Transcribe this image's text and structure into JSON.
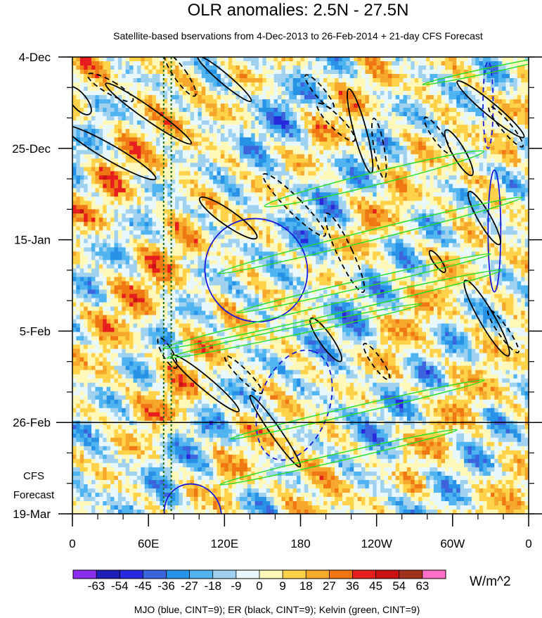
{
  "chart_data": {
    "type": "heatmap",
    "title": "OLR anomalies: 2.5N - 27.5N",
    "subtitle": "Satellite-based bservations from 4-Dec-2013 to 26-Feb-2014 + 21-day CFS Forecast",
    "xlabel": "",
    "ylabel": "",
    "x_ticks": [
      {
        "lon": 0,
        "label": "0"
      },
      {
        "lon": 60,
        "label": "60E"
      },
      {
        "lon": 120,
        "label": "120E"
      },
      {
        "lon": 180,
        "label": "180"
      },
      {
        "lon": 240,
        "label": "120W"
      },
      {
        "lon": 300,
        "label": "60W"
      },
      {
        "lon": 360,
        "label": "0"
      }
    ],
    "x_minor_step": 20,
    "xlim": [
      0,
      360
    ],
    "y_ticks": [
      {
        "day": 0,
        "label": "4-Dec"
      },
      {
        "day": 21,
        "label": "25-Dec"
      },
      {
        "day": 42,
        "label": "15-Jan"
      },
      {
        "day": 63,
        "label": "5-Feb"
      },
      {
        "day": 84,
        "label": "26-Feb"
      },
      {
        "day": 105,
        "label": "19-Mar"
      }
    ],
    "y_minor_step": 7,
    "ylim_days": [
      0,
      105
    ],
    "forecast_start_day": 84,
    "forecast_label_line1": "CFS",
    "forecast_label_line2": "Forecast",
    "colorbar": {
      "labels": [
        "-63",
        "-54",
        "-45",
        "-36",
        "-27",
        "-18",
        "-9",
        "0",
        "9",
        "18",
        "27",
        "36",
        "45",
        "54",
        "63"
      ],
      "colors": [
        "#8c2ef0",
        "#1e1eb4",
        "#2828dc",
        "#3c64dc",
        "#2892e6",
        "#50b4f0",
        "#a0d2f0",
        "#e8f8fc",
        "#fff8b8",
        "#ffd24a",
        "#f6a82c",
        "#f07814",
        "#e61e1e",
        "#c81414",
        "#a0321e",
        "#ff6ec8"
      ],
      "units": "W/m^2"
    },
    "reference_lines_lon": [
      72,
      78
    ],
    "contour_note": "MJO (blue, CINT=9); ER (black, CINT=9); Kelvin (green, CINT=9)",
    "series": [
      {
        "name": "MJO",
        "color": "#1a1ad8",
        "contours": [
          {
            "lon": 145,
            "day": 49,
            "rlon": 40,
            "rday": 12,
            "angle": 40,
            "dash": false
          },
          {
            "lon": 175,
            "day": 80,
            "rlon": 45,
            "rday": 8,
            "angle": 70,
            "dash": true
          },
          {
            "lon": 333,
            "day": 40,
            "rlon": 5,
            "rday": 14,
            "angle": 0,
            "dash": false
          },
          {
            "lon": 328,
            "day": 11,
            "rlon": 4,
            "rday": 10,
            "angle": 0,
            "dash": true
          },
          {
            "lon": 95,
            "day": 105,
            "rlon": 22,
            "rday": 7,
            "angle": 30,
            "dash": false
          }
        ]
      },
      {
        "name": "ER",
        "color": "#000000",
        "contours": [
          {
            "lon": 5,
            "day": 10,
            "rlon": 6,
            "rday": 4,
            "angle": 40,
            "dash": false
          },
          {
            "lon": 30,
            "day": 22,
            "rlon": 6,
            "rday": 12,
            "angle": 60,
            "dash": false
          },
          {
            "lon": 30,
            "day": 7,
            "rlon": 5,
            "rday": 6,
            "angle": 60,
            "dash": true
          },
          {
            "lon": 60,
            "day": 13,
            "rlon": 5,
            "rday": 12,
            "angle": 55,
            "dash": false
          },
          {
            "lon": 123,
            "day": 37,
            "rlon": 6,
            "rday": 8,
            "angle": 55,
            "dash": false
          },
          {
            "lon": 105,
            "day": 75,
            "rlon": 5,
            "rday": 10,
            "angle": 50,
            "dash": false
          },
          {
            "lon": 85,
            "day": 4,
            "rlon": 5,
            "rday": 6,
            "angle": 35,
            "dash": true
          },
          {
            "lon": 195,
            "day": 8,
            "rlon": 4,
            "rday": 5,
            "angle": 40,
            "dash": true
          },
          {
            "lon": 208,
            "day": 15,
            "rlon": 5,
            "rday": 6,
            "angle": 45,
            "dash": true
          },
          {
            "lon": 227,
            "day": 17,
            "rlon": 5,
            "rday": 10,
            "angle": 15,
            "dash": false
          },
          {
            "lon": 242,
            "day": 21,
            "rlon": 4,
            "rday": 7,
            "angle": 10,
            "dash": true
          },
          {
            "lon": 175,
            "day": 34,
            "rlon": 6,
            "rday": 10,
            "angle": 45,
            "dash": true
          },
          {
            "lon": 215,
            "day": 45,
            "rlon": 6,
            "rday": 10,
            "angle": 25,
            "dash": true
          },
          {
            "lon": 200,
            "day": 65,
            "rlon": 5,
            "rday": 6,
            "angle": 35,
            "dash": false
          },
          {
            "lon": 240,
            "day": 70,
            "rlon": 4,
            "rday": 5,
            "angle": 35,
            "dash": true
          },
          {
            "lon": 160,
            "day": 86,
            "rlon": 4,
            "rday": 10,
            "angle": 35,
            "dash": false
          },
          {
            "lon": 135,
            "day": 73,
            "rlon": 4,
            "rday": 6,
            "angle": 45,
            "dash": true
          },
          {
            "lon": 288,
            "day": 18,
            "rlon": 4,
            "rday": 5,
            "angle": 35,
            "dash": true
          },
          {
            "lon": 305,
            "day": 22,
            "rlon": 5,
            "rday": 6,
            "angle": 30,
            "dash": false
          },
          {
            "lon": 330,
            "day": 12,
            "rlon": 5,
            "rday": 10,
            "angle": 50,
            "dash": false
          },
          {
            "lon": 342,
            "day": 16,
            "rlon": 4,
            "rday": 6,
            "angle": 40,
            "dash": true
          },
          {
            "lon": 327,
            "day": 60,
            "rlon": 6,
            "rday": 10,
            "angle": 30,
            "dash": false
          },
          {
            "lon": 340,
            "day": 63,
            "rlon": 4,
            "rday": 6,
            "angle": 35,
            "dash": true
          },
          {
            "lon": 325,
            "day": 37,
            "rlon": 5,
            "rday": 7,
            "angle": 30,
            "dash": false
          },
          {
            "lon": 288,
            "day": 47,
            "rlon": 3,
            "rday": 3,
            "angle": 35,
            "dash": false
          },
          {
            "lon": 120,
            "day": 5,
            "rlon": 4,
            "rday": 8,
            "angle": 50,
            "dash": false
          },
          {
            "lon": 75,
            "day": 68,
            "rlon": 4,
            "rday": 4,
            "angle": 30,
            "dash": true
          }
        ]
      },
      {
        "name": "Kelvin",
        "color": "#22dd22",
        "contours": [
          {
            "lon": 238,
            "day": 28,
            "rlon": 5,
            "rday": 26,
            "angle": -76,
            "dash": false
          },
          {
            "lon": 235,
            "day": 41,
            "rlon": 4,
            "rday": 36,
            "angle": -76,
            "dash": false
          },
          {
            "lon": 230,
            "day": 52,
            "rlon": 3,
            "rday": 30,
            "angle": -77,
            "dash": false
          },
          {
            "lon": 205,
            "day": 58,
            "rlon": 4,
            "rday": 40,
            "angle": -77,
            "dash": false
          },
          {
            "lon": 175,
            "day": 63,
            "rlon": 3,
            "rday": 30,
            "angle": -78,
            "dash": false
          },
          {
            "lon": 225,
            "day": 81,
            "rlon": 3,
            "rday": 30,
            "angle": -77,
            "dash": false
          },
          {
            "lon": 210,
            "day": 92,
            "rlon": 3,
            "rday": 28,
            "angle": -77,
            "dash": false
          },
          {
            "lon": 330,
            "day": 3,
            "rlon": 2,
            "rday": 16,
            "angle": -78,
            "dash": false
          }
        ]
      }
    ]
  }
}
